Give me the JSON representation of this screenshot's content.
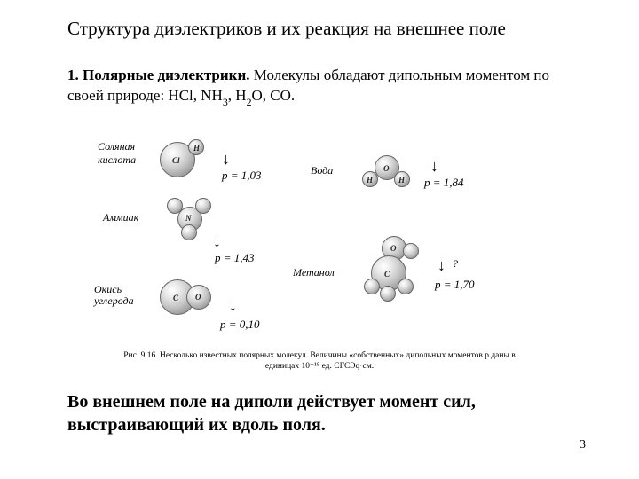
{
  "title": "Структура диэлектриков и их реакция на внешнее поле",
  "section_number": "1.",
  "section_title": "Полярные диэлектрики.",
  "section_text": "Молекулы обладают дипольным моментом по своей природе: HCl, NH",
  "section_text2": ", H",
  "section_text3": "O, CO.",
  "sub3": "3",
  "sub2": "2",
  "molecules": {
    "hcl": {
      "name": "Соляная кислота",
      "p": "p = 1,03",
      "atoms": [
        "Cl",
        "H"
      ]
    },
    "nh3": {
      "name": "Аммиак",
      "p": "p = 1,43",
      "atoms": [
        "N",
        "H",
        "H",
        "H"
      ]
    },
    "co": {
      "name": "Окись углерода",
      "p": "p = 0,10",
      "atoms": [
        "C",
        "O"
      ]
    },
    "h2o": {
      "name": "Вода",
      "p": "p = 1,84",
      "atoms": [
        "O",
        "H",
        "H"
      ]
    },
    "ch3oh": {
      "name": "Метанол",
      "p": "p = 1,70",
      "atoms": [
        "O",
        "C",
        "H",
        "H",
        "H",
        "H"
      ]
    }
  },
  "caption": "Рис. 9.16. Несколько известных полярных молекул. Величины «собственных» дипольных моментов p даны в единицах 10⁻¹⁸ ед. СГСЭq·см.",
  "conclusion": "Во внешнем поле на диполи действует момент сил, выстраивающий их вдоль поля.",
  "page_number": "3",
  "colors": {
    "text": "#000000",
    "bg": "#ffffff",
    "atom_light": "#f0f0f0",
    "atom_dark": "#888888"
  }
}
